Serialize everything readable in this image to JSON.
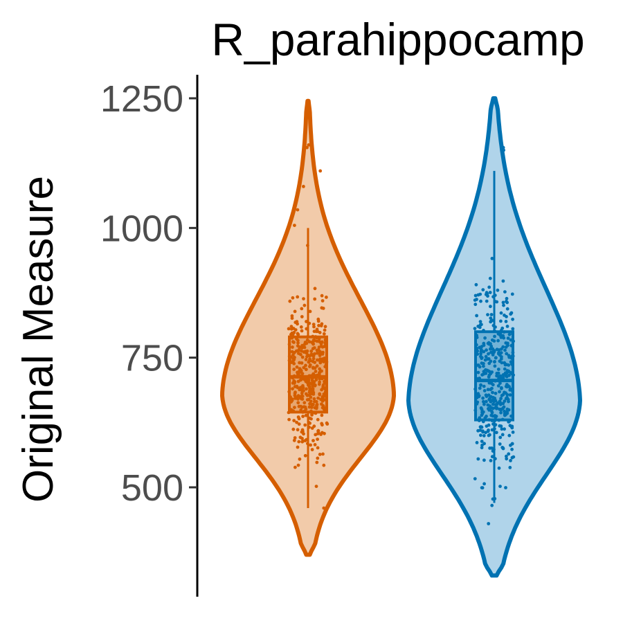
{
  "chart_data": {
    "type": "violin",
    "title": "R_parahippocamp",
    "xlabel": "",
    "ylabel": "Original Measure",
    "ylim": [
      300,
      1290
    ],
    "y_ticks": [
      500,
      750,
      1000,
      1250
    ],
    "y_tick_labels": [
      "500",
      "750",
      "1000",
      "1250"
    ],
    "x_axis_shown": false,
    "grid": false,
    "legend": "none",
    "series": [
      {
        "color": "#D55E00",
        "fill": "#F2CBAA",
        "min": 370,
        "max": 1245,
        "q1": 645,
        "median": 713,
        "q3": 790,
        "whisker_low": 460,
        "whisker_high": 1000,
        "outliers": [
          1160,
          1155,
          1110,
          1080,
          1035,
          1005,
          460
        ]
      },
      {
        "color": "#0072B2",
        "fill": "#B0D4EA",
        "min": 330,
        "max": 1250,
        "q1": 630,
        "median": 706,
        "q3": 800,
        "whisker_low": 470,
        "whisker_high": 1110,
        "outliers": [
          1155,
          1150,
          430,
          465
        ]
      }
    ]
  }
}
